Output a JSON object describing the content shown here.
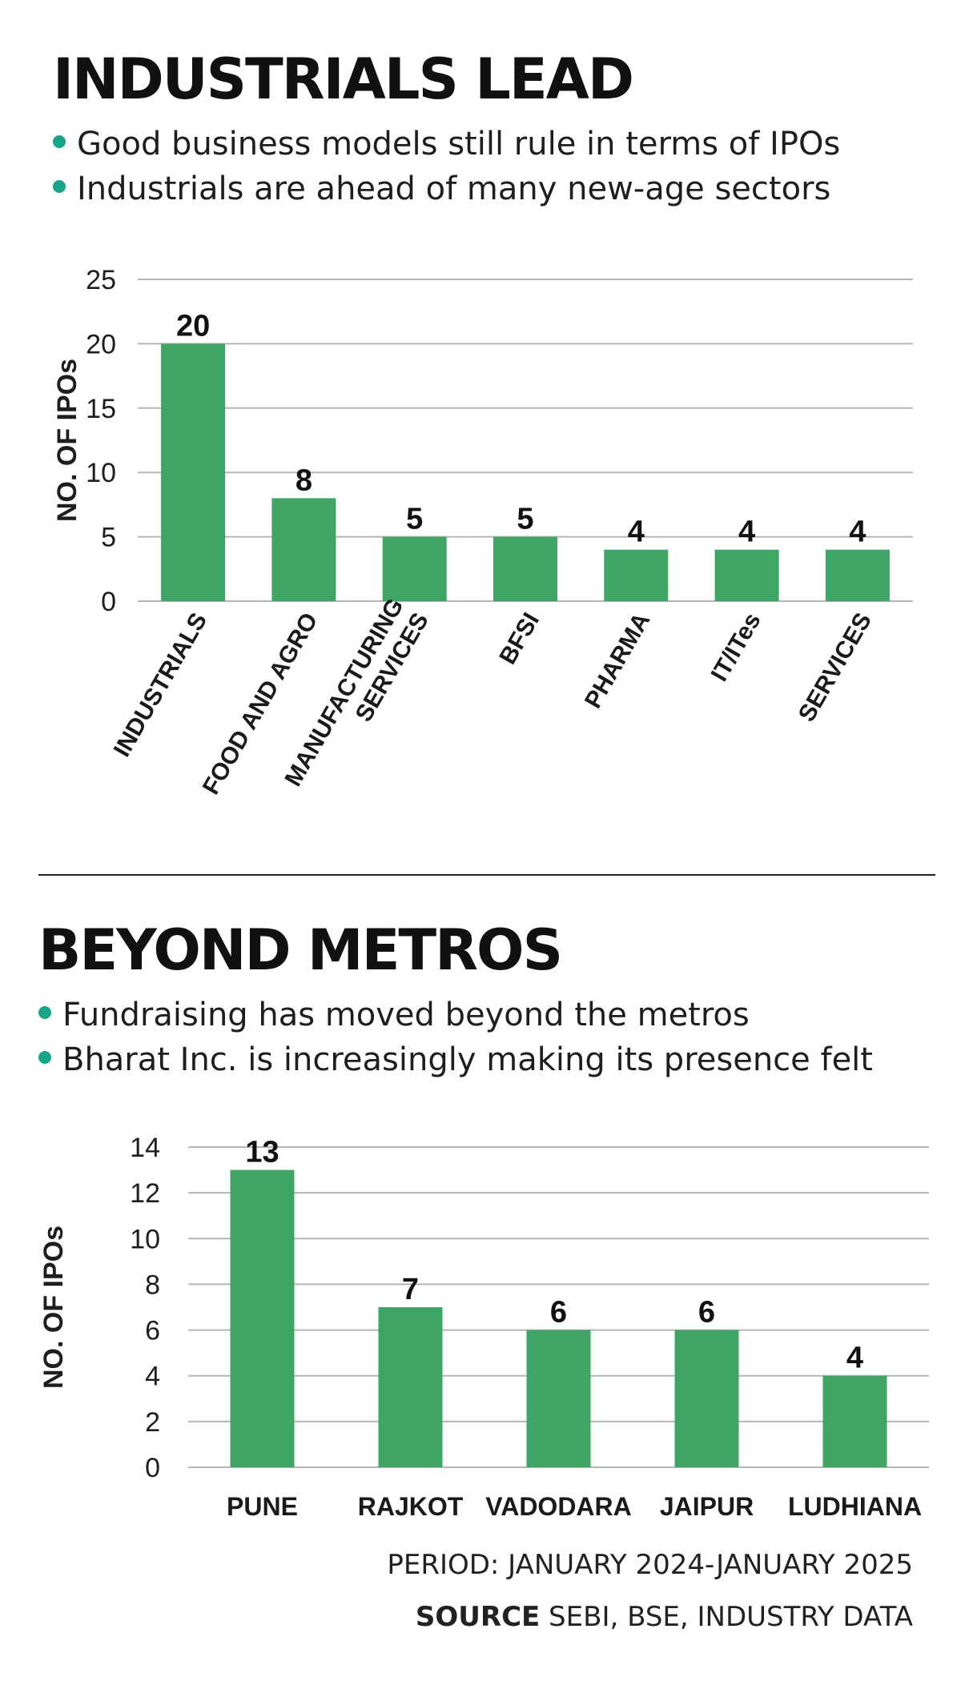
{
  "section1": {
    "title": "INDUSTRIALS LEAD",
    "bullets": [
      "Good business models still rule in terms of IPOs",
      "Industrials are ahead of many new-age sectors"
    ]
  },
  "section2": {
    "title": "BEYOND METROS",
    "bullets": [
      "Fundraising has moved beyond the metros",
      "Bharat Inc. is increasingly making its presence felt"
    ]
  },
  "footer": {
    "period": "PERIOD: JANUARY 2024-JANUARY 2025",
    "source_label": "SOURCE",
    "source_text": " SEBI, BSE, INDUSTRY DATA"
  },
  "colors": {
    "bar": "#3ea565",
    "bullet": "#17a589",
    "grid": "#b5b5b5"
  },
  "chart_data": [
    {
      "type": "bar",
      "ylabel": "NO. OF IPOs",
      "categories": [
        "INDUSTRIALS",
        "FOOD AND AGRO",
        "MANUFACTURING\nSERVICES",
        "BFSI",
        "PHARMA",
        "IT/ITes",
        "SERVICES"
      ],
      "values": [
        20,
        8,
        5,
        5,
        4,
        4,
        4
      ],
      "ylim": [
        0,
        25
      ],
      "yticks": [
        0,
        5,
        10,
        15,
        20,
        25
      ],
      "grid": true
    },
    {
      "type": "bar",
      "ylabel": "NO. OF IPOs",
      "categories": [
        "PUNE",
        "RAJKOT",
        "VADODARA",
        "JAIPUR",
        "LUDHIANA"
      ],
      "values": [
        13,
        7,
        6,
        6,
        4
      ],
      "ylim": [
        0,
        14
      ],
      "yticks": [
        0,
        2,
        4,
        6,
        8,
        10,
        12,
        14
      ],
      "grid": true
    }
  ]
}
